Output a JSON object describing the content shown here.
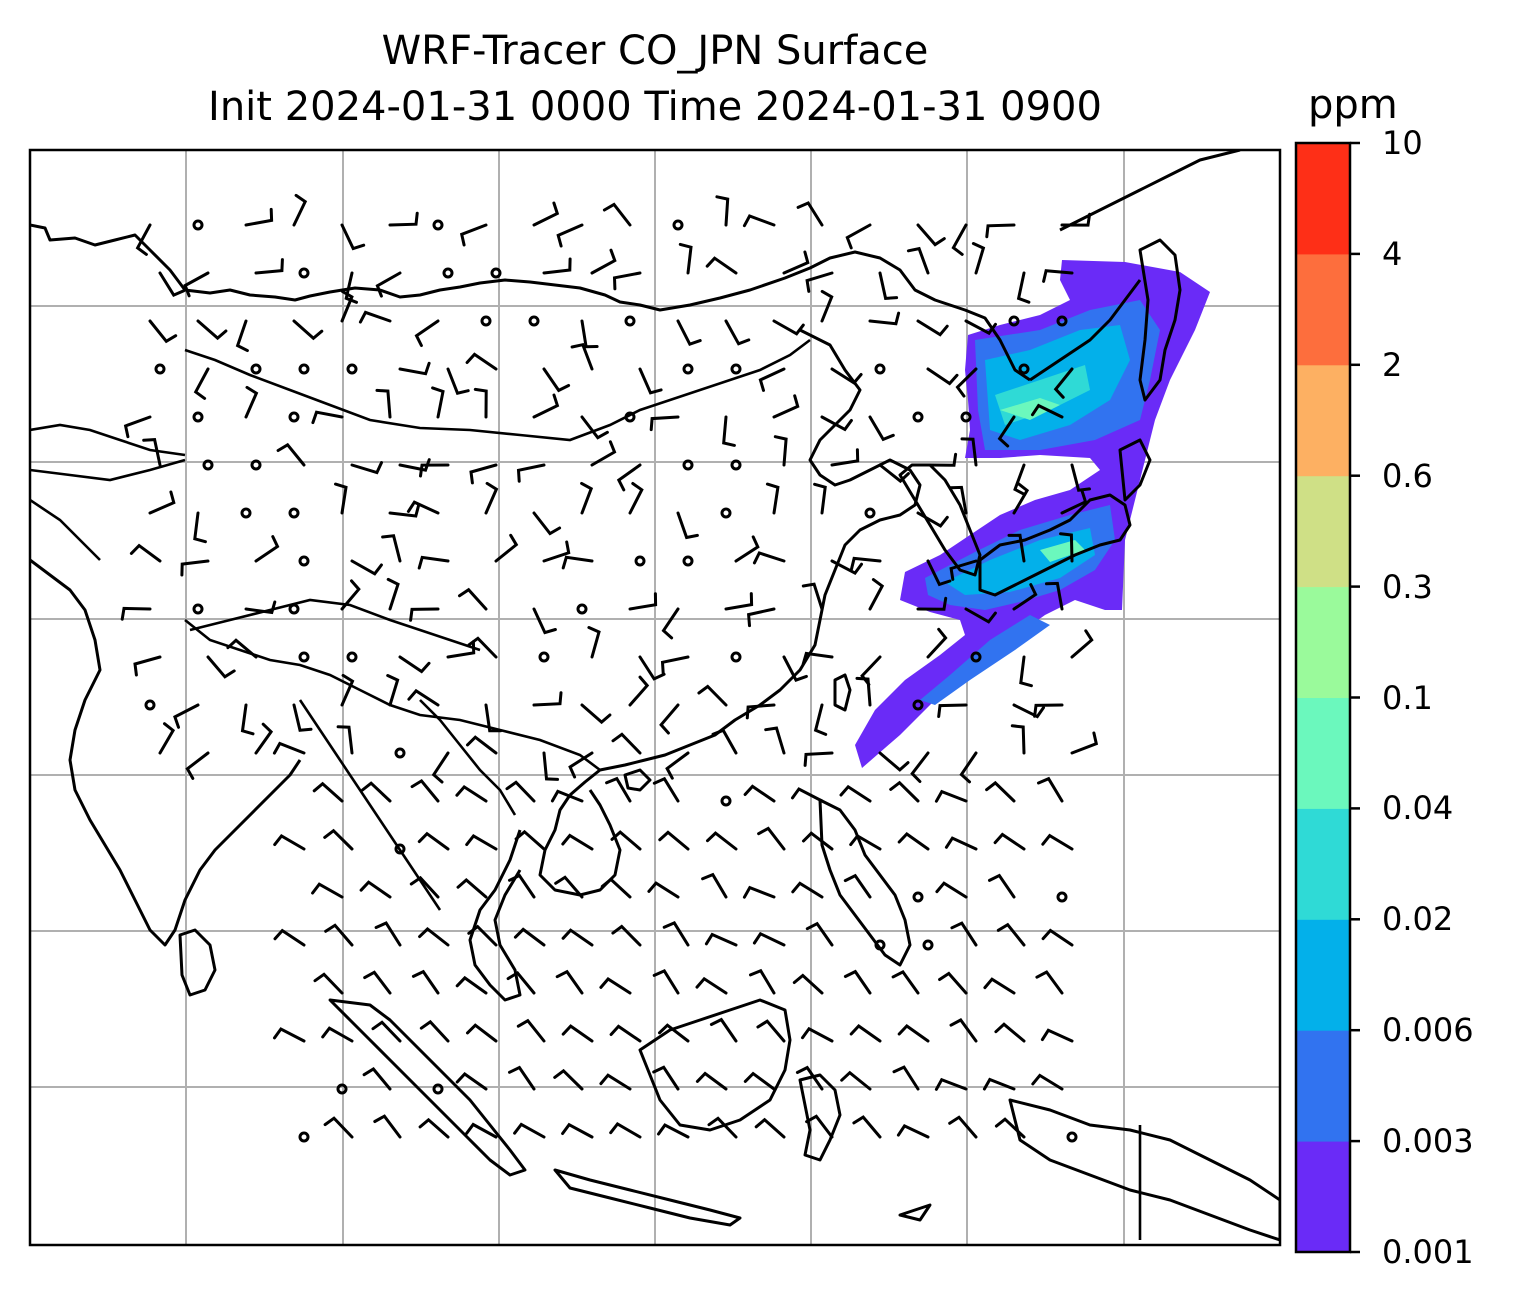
{
  "title": {
    "line1": "WRF-Tracer CO_JPN Surface",
    "line2": "Init 2024-01-31 0000 Time 2024-01-31 0900"
  },
  "colorbar": {
    "unit": "ppm",
    "levels": [
      "0.001",
      "0.003",
      "0.006",
      "0.02",
      "0.04",
      "0.1",
      "0.3",
      "0.6",
      "2",
      "4",
      "10"
    ],
    "colors": [
      "#6a2bf7",
      "#3173f0",
      "#03b0ea",
      "#2fdad6",
      "#6bf8bd",
      "#9afa9b",
      "#cfe086",
      "#fdb062",
      "#fd6e3d",
      "#fe2f17"
    ]
  },
  "map": {
    "features": [
      "coastlines",
      "borders",
      "gridlines",
      "wind-barbs",
      "tracer-plume"
    ],
    "gridline_color": "#b0b0b0"
  }
}
